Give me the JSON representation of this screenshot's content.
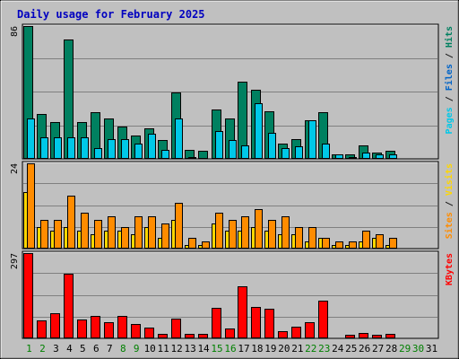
{
  "chart_data": {
    "type": "bar",
    "title": "Daily usage for February 2025",
    "days": [
      "1",
      "2",
      "3",
      "4",
      "5",
      "6",
      "7",
      "8",
      "9",
      "10",
      "11",
      "12",
      "13",
      "14",
      "15",
      "16",
      "17",
      "18",
      "19",
      "20",
      "21",
      "22",
      "23",
      "24",
      "25",
      "26",
      "27",
      "28",
      "29",
      "30",
      "31"
    ],
    "weekend_days": [
      "1",
      "2",
      "8",
      "9",
      "15",
      "16",
      "22",
      "23",
      "29",
      "30"
    ],
    "panels": [
      {
        "id": "hits-files",
        "max_label": "86",
        "ymax": 86,
        "legend": [
          {
            "text": "Pages",
            "color": "#00c8e8"
          },
          {
            "text": " / ",
            "color": "#1a1a1a"
          },
          {
            "text": "Files",
            "color": "#0064c8"
          },
          {
            "text": " / ",
            "color": "#1a1a1a"
          },
          {
            "text": "Hits",
            "color": "#008060"
          }
        ],
        "series": [
          {
            "name": "Hits",
            "color": "#008060",
            "values": [
              86,
              29,
              24,
              77,
              24,
              30,
              26,
              21,
              15,
              20,
              12,
              43,
              6,
              5,
              32,
              26,
              50,
              45,
              31,
              10,
              13,
              25,
              30,
              3,
              3,
              9,
              4,
              5,
              0,
              0,
              0
            ]
          },
          {
            "name": "Files",
            "color": "#00c8e8",
            "values": [
              26,
              14,
              14,
              14,
              14,
              7,
              13,
              13,
              10,
              16,
              6,
              26,
              1,
              0,
              18,
              12,
              9,
              36,
              17,
              7,
              8,
              25,
              10,
              3,
              1,
              4,
              3,
              3,
              0,
              0,
              0
            ]
          }
        ]
      },
      {
        "id": "visits-sites",
        "max_label": "24",
        "ymax": 24,
        "legend": [
          {
            "text": "Sites",
            "color": "#ff8c00"
          },
          {
            "text": " / ",
            "color": "#1a1a1a"
          },
          {
            "text": "Visits",
            "color": "#ffd700"
          }
        ],
        "series": [
          {
            "name": "Visits",
            "color": "#ffd700",
            "values": [
              16,
              6,
              5,
              6,
              5,
              4,
              5,
              5,
              4,
              6,
              3,
              8,
              1,
              1,
              7,
              5,
              5,
              6,
              5,
              4,
              4,
              2,
              3,
              1,
              1,
              2,
              3,
              1,
              0,
              0,
              0
            ]
          },
          {
            "name": "Sites",
            "color": "#ff8c00",
            "values": [
              24,
              8,
              8,
              15,
              10,
              8,
              9,
              6,
              9,
              9,
              7,
              13,
              3,
              2,
              10,
              8,
              9,
              11,
              8,
              9,
              6,
              6,
              3,
              2,
              2,
              5,
              4,
              3,
              0,
              0,
              0
            ]
          }
        ]
      },
      {
        "id": "kbytes",
        "max_label": "297",
        "ymax": 297,
        "legend": [
          {
            "text": "KBytes",
            "color": "#ff0000"
          }
        ],
        "series": [
          {
            "name": "KBytes",
            "color": "#ff0000",
            "values": [
              297,
              61,
              86,
              224,
              66,
              78,
              55,
              78,
              50,
              36,
              16,
              68,
              16,
              15,
              106,
              33,
              182,
              110,
              104,
              24,
              40,
              55,
              131,
              3,
              12,
              18,
              12,
              17,
              0,
              0,
              0
            ]
          }
        ]
      }
    ]
  }
}
